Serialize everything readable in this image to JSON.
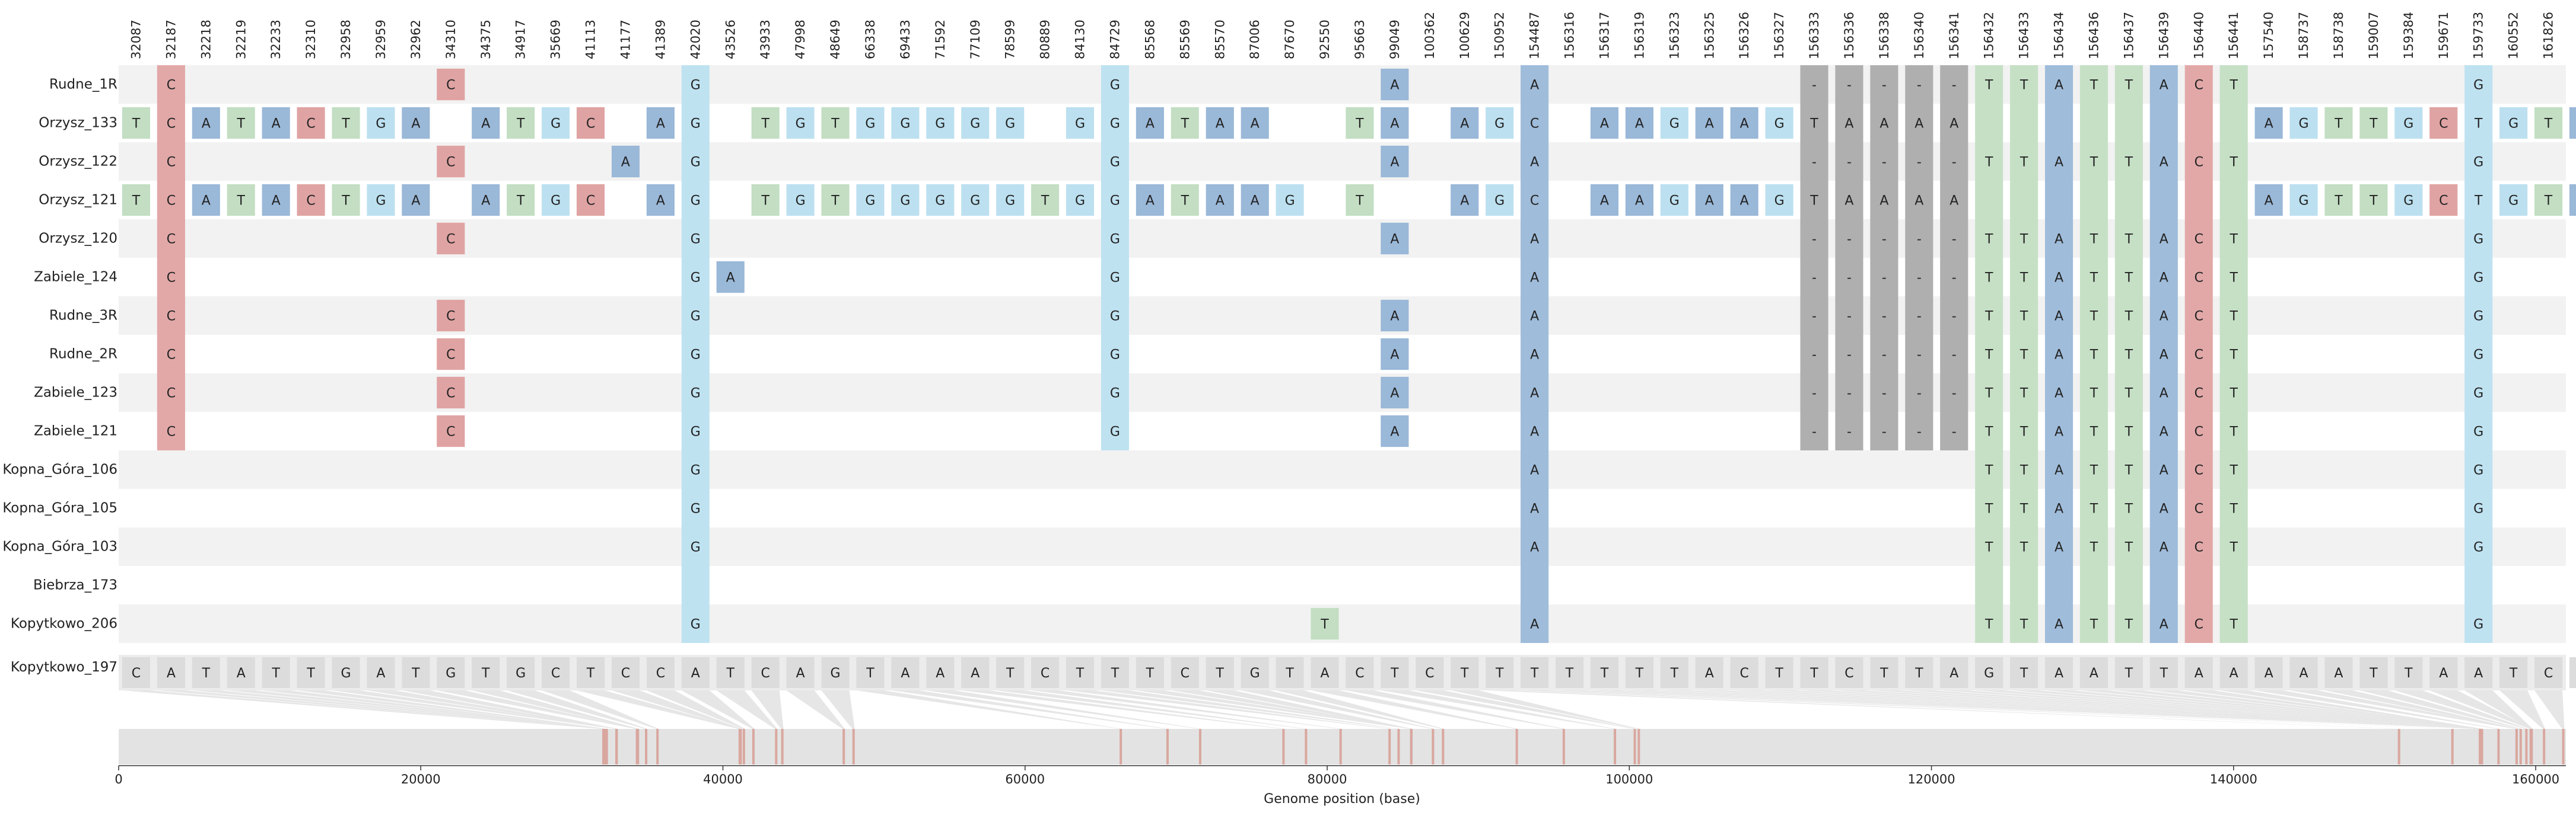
{
  "chart_data": {
    "type": "table",
    "title": "",
    "xlabel": "Genome position (base)",
    "xlim": [
      0,
      162000
    ],
    "xticks": [
      0,
      20000,
      40000,
      60000,
      80000,
      100000,
      120000,
      140000,
      160000
    ],
    "xtick_labels": [
      "0",
      "20000",
      "40000",
      "60000",
      "80000",
      "100000",
      "120000",
      "140000",
      "160000"
    ],
    "positions": [
      32087,
      32187,
      32218,
      32219,
      32233,
      32310,
      32958,
      32959,
      32962,
      34310,
      34375,
      34917,
      35669,
      41113,
      41177,
      41389,
      42020,
      43526,
      43933,
      47998,
      48649,
      66338,
      69433,
      71592,
      77109,
      78599,
      80889,
      84130,
      84729,
      85568,
      85569,
      85570,
      87006,
      87670,
      92550,
      95663,
      99049,
      100362,
      100629,
      150952,
      154487,
      156316,
      156317,
      156319,
      156323,
      156325,
      156326,
      156327,
      156333,
      156336,
      156338,
      156340,
      156341,
      156432,
      156433,
      156434,
      156436,
      156437,
      156439,
      156440,
      156441,
      157540,
      158737,
      158738,
      159007,
      159384,
      159671,
      159733,
      160552,
      161826
    ],
    "reference": {
      "name": "Kopytkowo_197",
      "bases": "CATATTGATGTGCTCCATCAGTAAATCTTTCTGTACTCTTTTTTTACTTCTTAGTAATTAAAAATTAATCC"
    },
    "samples": [
      {
        "name": "Rudne_1R",
        "alleles": {
          "32187": "C",
          "34310": "C",
          "42020": "G",
          "84729": "G",
          "99049": "A",
          "154487": "A",
          "156333": "-",
          "156336": "-",
          "156338": "-",
          "156340": "-",
          "156341": "-",
          "156432": "T",
          "156433": "T",
          "156434": "A",
          "156436": "T",
          "156437": "T",
          "156439": "A",
          "156440": "C",
          "156441": "T",
          "159733": "G"
        }
      },
      {
        "name": "Orzysz_133",
        "alleles": {
          "32087": "T",
          "32187": "C",
          "32218": "A",
          "32219": "T",
          "32233": "A",
          "32310": "C",
          "32958": "T",
          "32959": "G",
          "32962": "A",
          "34375": "A",
          "34917": "T",
          "35669": "G",
          "41113": "C",
          "41389": "A",
          "42020": "G",
          "43933": "T",
          "47998": "G",
          "48649": "T",
          "66338": "G",
          "69433": "G",
          "71592": "G",
          "77109": "G",
          "78599": "G",
          "84130": "G",
          "84729": "G",
          "85568": "A",
          "85569": "T",
          "85570": "A",
          "87006": "A",
          "95663": "T",
          "99049": "A",
          "100629": "A",
          "150952": "G",
          "154487": "C",
          "156317": "A",
          "156319": "A",
          "156323": "G",
          "156325": "A",
          "156326": "A",
          "156327": "G",
          "156333": "T",
          "156336": "A",
          "156338": "A",
          "156340": "A",
          "156341": "A",
          "157540": "A",
          "158737": "G",
          "158738": "T",
          "159007": "T",
          "159384": "G",
          "159671": "C",
          "159733": "T",
          "160552": "G",
          "161826": "T",
          "161826b": "A"
        }
      },
      {
        "name": "Orzysz_122",
        "alleles": {
          "32187": "C",
          "34310": "C",
          "41177": "A",
          "42020": "G",
          "84729": "G",
          "99049": "A",
          "154487": "A",
          "156333": "-",
          "156336": "-",
          "156338": "-",
          "156340": "-",
          "156341": "-",
          "156432": "T",
          "156433": "T",
          "156434": "A",
          "156436": "T",
          "156437": "T",
          "156439": "A",
          "156440": "C",
          "156441": "T",
          "159733": "G"
        }
      },
      {
        "name": "Orzysz_121",
        "alleles": {
          "32087": "T",
          "32187": "C",
          "32218": "A",
          "32219": "T",
          "32233": "A",
          "32310": "C",
          "32958": "T",
          "32959": "G",
          "32962": "A",
          "34375": "A",
          "34917": "T",
          "35669": "G",
          "41113": "C",
          "41389": "A",
          "42020": "G",
          "43933": "T",
          "47998": "G",
          "48649": "T",
          "66338": "G",
          "69433": "G",
          "71592": "G",
          "77109": "G",
          "78599": "G",
          "80889": "T",
          "84130": "G",
          "84729": "G",
          "85568": "A",
          "85569": "T",
          "85570": "A",
          "87006": "A",
          "87670": "G",
          "95663": "T",
          "100629": "A",
          "150952": "G",
          "154487": "C",
          "156317": "A",
          "156319": "A",
          "156323": "G",
          "156325": "A",
          "156326": "A",
          "156327": "G",
          "156333": "T",
          "156336": "A",
          "156338": "A",
          "156340": "A",
          "156341": "A",
          "157540": "A",
          "158737": "G",
          "158738": "T",
          "159007": "T",
          "159384": "G",
          "159671": "C",
          "159733": "T",
          "160552": "G",
          "161826": "T",
          "161826b": "A"
        }
      },
      {
        "name": "Orzysz_120",
        "alleles": {
          "32187": "C",
          "34310": "C",
          "42020": "G",
          "84729": "G",
          "99049": "A",
          "154487": "A",
          "156333": "-",
          "156336": "-",
          "156338": "-",
          "156340": "-",
          "156341": "-",
          "156432": "T",
          "156433": "T",
          "156434": "A",
          "156436": "T",
          "156437": "T",
          "156439": "A",
          "156440": "C",
          "156441": "T",
          "159733": "G"
        }
      },
      {
        "name": "Zabiele_124",
        "alleles": {
          "32187": "C",
          "42020": "G",
          "43526": "A",
          "84729": "G",
          "154487": "A",
          "156333": "-",
          "156336": "-",
          "156338": "-",
          "156340": "-",
          "156341": "-",
          "156432": "T",
          "156433": "T",
          "156434": "A",
          "156436": "T",
          "156437": "T",
          "156439": "A",
          "156440": "C",
          "156441": "T",
          "159733": "G"
        }
      },
      {
        "name": "Rudne_3R",
        "alleles": {
          "32187": "C",
          "34310": "C",
          "42020": "G",
          "84729": "G",
          "99049": "A",
          "154487": "A",
          "156333": "-",
          "156336": "-",
          "156338": "-",
          "156340": "-",
          "156341": "-",
          "156432": "T",
          "156433": "T",
          "156434": "A",
          "156436": "T",
          "156437": "T",
          "156439": "A",
          "156440": "C",
          "156441": "T",
          "159733": "G"
        }
      },
      {
        "name": "Rudne_2R",
        "alleles": {
          "32187": "C",
          "34310": "C",
          "42020": "G",
          "84729": "G",
          "99049": "A",
          "154487": "A",
          "156333": "-",
          "156336": "-",
          "156338": "-",
          "156340": "-",
          "156341": "-",
          "156432": "T",
          "156433": "T",
          "156434": "A",
          "156436": "T",
          "156437": "T",
          "156439": "A",
          "156440": "C",
          "156441": "T",
          "159733": "G"
        }
      },
      {
        "name": "Zabiele_123",
        "alleles": {
          "32187": "C",
          "34310": "C",
          "42020": "G",
          "84729": "G",
          "99049": "A",
          "154487": "A",
          "156333": "-",
          "156336": "-",
          "156338": "-",
          "156340": "-",
          "156341": "-",
          "156432": "T",
          "156433": "T",
          "156434": "A",
          "156436": "T",
          "156437": "T",
          "156439": "A",
          "156440": "C",
          "156441": "T",
          "159733": "G"
        }
      },
      {
        "name": "Zabiele_121",
        "alleles": {
          "32187": "C",
          "34310": "C",
          "42020": "G",
          "84729": "G",
          "99049": "A",
          "154487": "A",
          "156333": "-",
          "156336": "-",
          "156338": "-",
          "156340": "-",
          "156341": "-",
          "156432": "T",
          "156433": "T",
          "156434": "A",
          "156436": "T",
          "156437": "T",
          "156439": "A",
          "156440": "C",
          "156441": "T",
          "159733": "G"
        }
      },
      {
        "name": "Kopna_Góra_106",
        "alleles": {
          "42020": "G",
          "154487": "A",
          "156432": "T",
          "156433": "T",
          "156434": "A",
          "156436": "T",
          "156437": "T",
          "156439": "A",
          "156440": "C",
          "156441": "T",
          "159733": "G"
        }
      },
      {
        "name": "Kopna_Góra_105",
        "alleles": {
          "42020": "G",
          "154487": "A",
          "156432": "T",
          "156433": "T",
          "156434": "A",
          "156436": "T",
          "156437": "T",
          "156439": "A",
          "156440": "C",
          "156441": "T",
          "159733": "G"
        }
      },
      {
        "name": "Kopna_Góra_103",
        "alleles": {
          "42020": "G",
          "154487": "A",
          "156432": "T",
          "156433": "T",
          "156434": "A",
          "156436": "T",
          "156437": "T",
          "156439": "A",
          "156440": "C",
          "156441": "T",
          "159733": "G"
        }
      },
      {
        "name": "Biebrza_173",
        "alleles": {}
      },
      {
        "name": "Kopytkowo_206",
        "alleles": {
          "42020": "G",
          "92550": "T",
          "154487": "A",
          "156432": "T",
          "156433": "T",
          "156434": "A",
          "156436": "T",
          "156437": "T",
          "156439": "A",
          "156440": "C",
          "156441": "T",
          "159733": "G"
        }
      }
    ],
    "base_colors": {
      "A": "#9ab8d8",
      "C": "#e0a3a3",
      "G": "#bce0f0",
      "T": "#c3dec3",
      "-": "#ababab",
      "ref": "#dcdcdc",
      "band": "#f2f2f2",
      "genome": "#e3e3e3",
      "mark": "#d9a79f"
    }
  }
}
